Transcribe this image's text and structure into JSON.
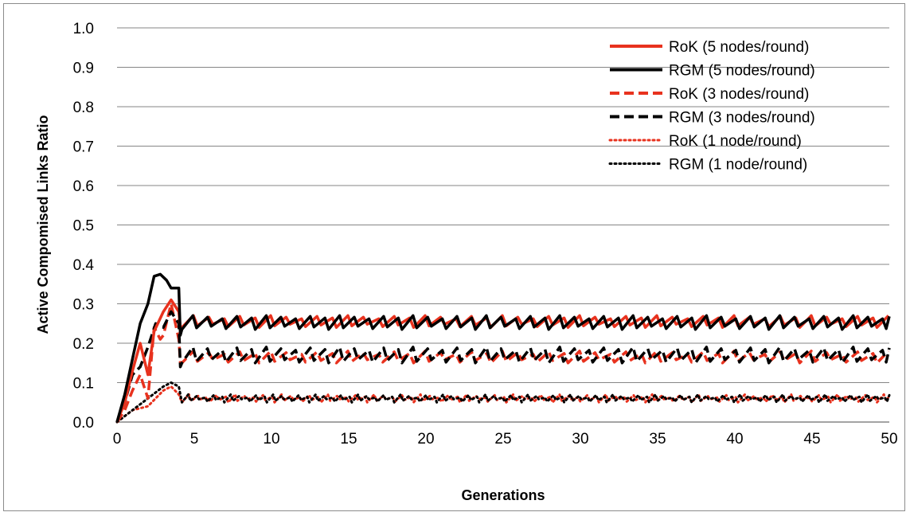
{
  "chart_data": {
    "type": "line",
    "title": "",
    "xlabel": "Generations",
    "ylabel": "Active Compomised Links Ratio",
    "xlim": [
      0,
      50
    ],
    "ylim": [
      0,
      1.0
    ],
    "x_ticks": [
      "0",
      "5",
      "10",
      "15",
      "20",
      "25",
      "30",
      "35",
      "40",
      "45",
      "50"
    ],
    "y_ticks": [
      "0.0",
      "0.1",
      "0.2",
      "0.3",
      "0.4",
      "0.5",
      "0.6",
      "0.7",
      "0.8",
      "0.9",
      "1.0"
    ],
    "grid": "horizontal",
    "legend_position": "top-right",
    "series": [
      {
        "name": "RoK (5 nodes/round)",
        "color": "#e8321e",
        "style": "solid",
        "profile": [
          [
            0,
            0.0
          ],
          [
            0.5,
            0.05
          ],
          [
            1.0,
            0.13
          ],
          [
            1.5,
            0.2
          ],
          [
            2.0,
            0.12
          ],
          [
            2.4,
            0.23
          ],
          [
            3.0,
            0.28
          ],
          [
            3.5,
            0.31
          ],
          [
            4.0,
            0.28
          ],
          [
            4.1,
            0.24
          ]
        ],
        "steady": {
          "from": 4.2,
          "to": 50,
          "low": 0.24,
          "high": 0.27,
          "period": 1.0
        }
      },
      {
        "name": "RGM (5 nodes/round)",
        "color": "#000000",
        "style": "solid",
        "profile": [
          [
            0,
            0.0
          ],
          [
            0.5,
            0.07
          ],
          [
            1.0,
            0.16
          ],
          [
            1.5,
            0.25
          ],
          [
            2.0,
            0.3
          ],
          [
            2.4,
            0.37
          ],
          [
            2.8,
            0.375
          ],
          [
            3.2,
            0.36
          ],
          [
            3.5,
            0.34
          ],
          [
            4.0,
            0.34
          ],
          [
            4.1,
            0.22
          ]
        ],
        "steady": {
          "from": 4.2,
          "to": 50,
          "low": 0.235,
          "high": 0.27,
          "period": 0.95
        }
      },
      {
        "name": "RoK (3 nodes/round)",
        "color": "#e8321e",
        "style": "dashed",
        "profile": [
          [
            0,
            0.0
          ],
          [
            0.5,
            0.03
          ],
          [
            1.0,
            0.08
          ],
          [
            1.5,
            0.12
          ],
          [
            2.0,
            0.06
          ],
          [
            2.4,
            0.24
          ],
          [
            2.8,
            0.21
          ],
          [
            3.0,
            0.22
          ],
          [
            3.5,
            0.3
          ],
          [
            4.0,
            0.21
          ],
          [
            4.1,
            0.15
          ]
        ],
        "steady": {
          "from": 4.2,
          "to": 50,
          "low": 0.15,
          "high": 0.18,
          "period": 1.0
        }
      },
      {
        "name": "RGM (3 nodes/round)",
        "color": "#000000",
        "style": "dashed",
        "profile": [
          [
            0,
            0.0
          ],
          [
            0.5,
            0.05
          ],
          [
            1.0,
            0.12
          ],
          [
            1.5,
            0.14
          ],
          [
            2.0,
            0.19
          ],
          [
            2.5,
            0.25
          ],
          [
            3.0,
            0.24
          ],
          [
            3.5,
            0.28
          ],
          [
            4.0,
            0.25
          ],
          [
            4.1,
            0.14
          ]
        ],
        "steady": {
          "from": 4.2,
          "to": 50,
          "low": 0.15,
          "high": 0.19,
          "period": 0.95
        }
      },
      {
        "name": "RoK (1 node/round)",
        "color": "#e8321e",
        "style": "dotted",
        "profile": [
          [
            0,
            0.0
          ],
          [
            1.0,
            0.03
          ],
          [
            2.0,
            0.04
          ],
          [
            3.0,
            0.08
          ],
          [
            3.5,
            0.09
          ],
          [
            4.0,
            0.07
          ]
        ],
        "steady": {
          "from": 4.2,
          "to": 50,
          "low": 0.05,
          "high": 0.07,
          "period": 0.6
        }
      },
      {
        "name": "RGM (1 node/round)",
        "color": "#000000",
        "style": "dotted",
        "profile": [
          [
            0,
            0.0
          ],
          [
            1.0,
            0.03
          ],
          [
            2.0,
            0.06
          ],
          [
            3.0,
            0.09
          ],
          [
            3.5,
            0.1
          ],
          [
            4.0,
            0.09
          ]
        ],
        "steady": {
          "from": 4.2,
          "to": 50,
          "low": 0.05,
          "high": 0.07,
          "period": 0.55
        }
      }
    ]
  }
}
